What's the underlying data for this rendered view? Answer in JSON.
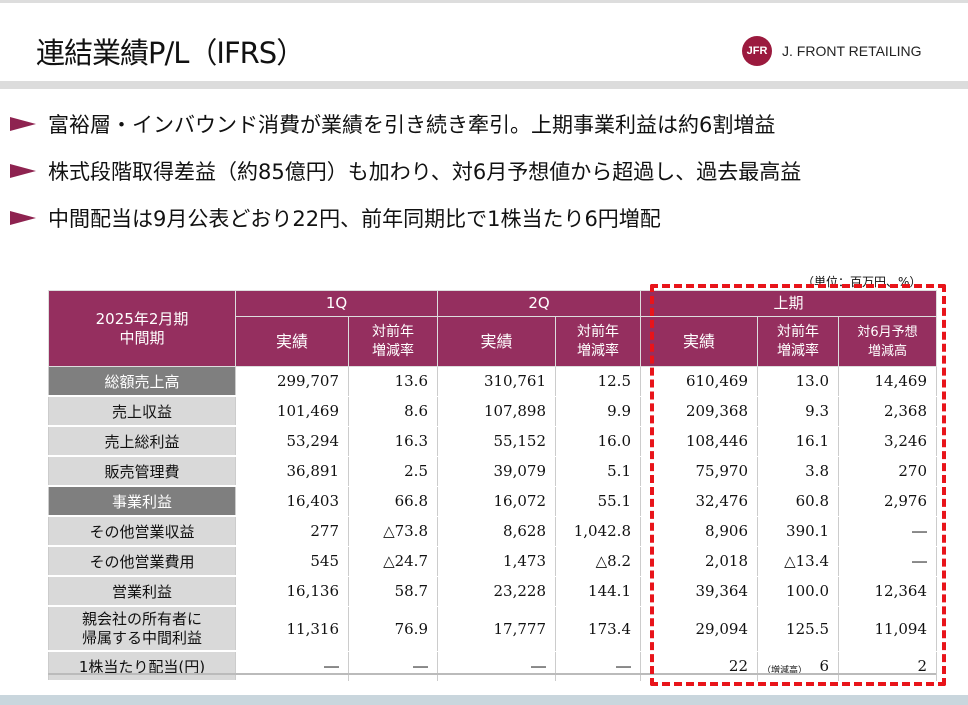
{
  "header": {
    "title": "連結業績P/L（IFRS）",
    "logo_mark": "JFR",
    "logo_text": "J. FRONT RETAILING"
  },
  "bullets": [
    "富裕層・インバウンド消費が業績を引き続き牽引。上期事業利益は約6割増益",
    "株式段階取得差益（約85億円）も加わり、対6月予想値から超過し、過去最高益",
    "中間配当は9月公表どおり22円、前年同期比で1株当たり6円増配"
  ],
  "table": {
    "unit": "（単位：百万円、%）",
    "corner": [
      "2025年2月期",
      "中間期"
    ],
    "groups": [
      "1Q",
      "2Q",
      "上期"
    ],
    "sub": {
      "actual": "実績",
      "yoy": "対前年\n増減率",
      "vs_forecast": "対6月予想\n増減高"
    },
    "rows": [
      {
        "label": "総額売上高",
        "dark": true,
        "v": [
          "299,707",
          "13.6",
          "310,761",
          "12.5",
          "610,469",
          "13.0",
          "14,469"
        ]
      },
      {
        "label": "売上収益",
        "v": [
          "101,469",
          "8.6",
          "107,898",
          "9.9",
          "209,368",
          "9.3",
          "2,368"
        ]
      },
      {
        "label": "売上総利益",
        "v": [
          "53,294",
          "16.3",
          "55,152",
          "16.0",
          "108,446",
          "16.1",
          "3,246"
        ]
      },
      {
        "label": "販売管理費",
        "v": [
          "36,891",
          "2.5",
          "39,079",
          "5.1",
          "75,970",
          "3.8",
          "270"
        ]
      },
      {
        "label": "事業利益",
        "dark": true,
        "v": [
          "16,403",
          "66.8",
          "16,072",
          "55.1",
          "32,476",
          "60.8",
          "2,976"
        ]
      },
      {
        "label": "その他営業収益",
        "v": [
          "277",
          "△73.8",
          "8,628",
          "1,042.8",
          "8,906",
          "390.1",
          "―"
        ]
      },
      {
        "label": "その他営業費用",
        "v": [
          "545",
          "△24.7",
          "1,473",
          "△8.2",
          "2,018",
          "△13.4",
          "―"
        ]
      },
      {
        "label": "営業利益",
        "v": [
          "16,136",
          "58.7",
          "23,228",
          "144.1",
          "39,364",
          "100.0",
          "12,364"
        ]
      },
      {
        "label": "親会社の所有者に\n帰属する中間利益",
        "tall": true,
        "v": [
          "11,316",
          "76.9",
          "17,777",
          "173.4",
          "29,094",
          "125.5",
          "11,094"
        ]
      },
      {
        "label": "1株当たり配当(円)",
        "v": [
          "―",
          "―",
          "―",
          "―",
          "22",
          "6",
          "2"
        ],
        "note": "（増減高）"
      }
    ]
  }
}
